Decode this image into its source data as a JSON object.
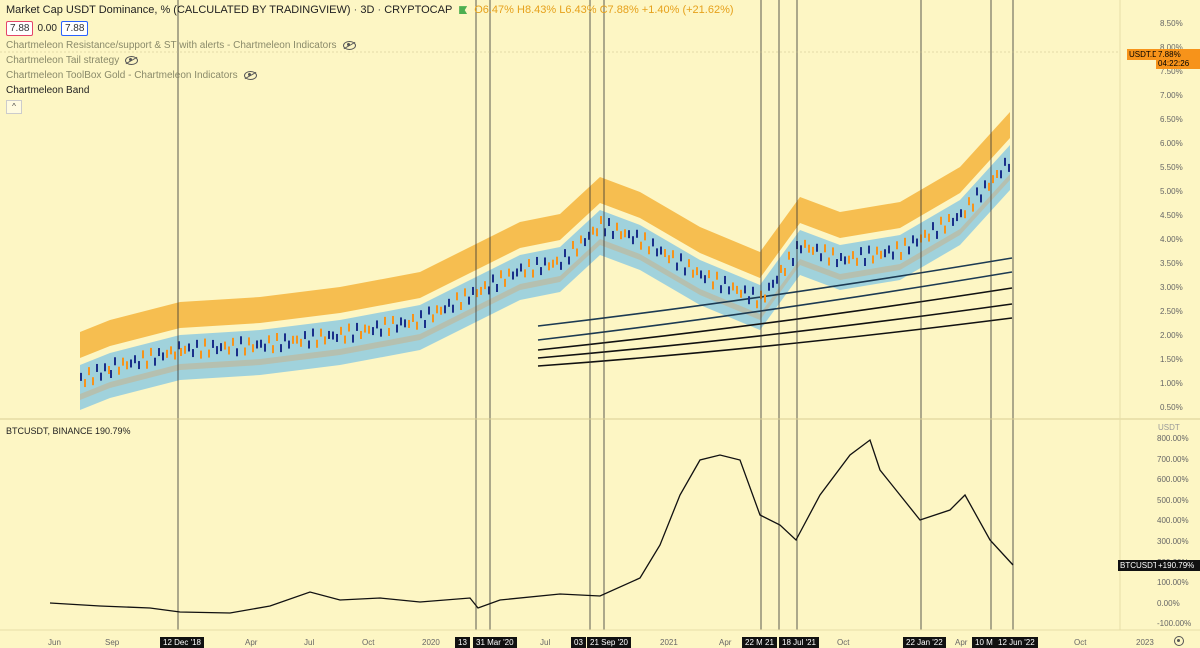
{
  "header": {
    "title": "Market Cap USDT Dominance, % (CALCULATED BY TRADINGVIEW)",
    "interval": "3D",
    "exchange": "CRYPTOCAP",
    "open": "O6.47%",
    "high": "H8.43%",
    "low": "L6.43%",
    "close": "C7.88%",
    "change": "+1.40% (+21.62%)",
    "price_box_1": "7.88",
    "price_box_mid": "0.00",
    "price_box_2": "7.88"
  },
  "indicators": [
    {
      "label": "Chartmeleon Resistance/support & ST with alerts - Chartmeleon Indicators"
    },
    {
      "label": "Chartmeleon Tail strategy"
    },
    {
      "label": "Chartmeleon ToolBox Gold - Chartmeleon Indicators"
    },
    {
      "label": "Chartmeleon Band"
    }
  ],
  "collapse_glyph": "^",
  "btc_legend": {
    "symbol": "BTCUSDT, BINANCE",
    "value": "190.79%"
  },
  "price_tags": {
    "usdt_symbol": "USDT.D",
    "usdt_value": "7.88%",
    "usdt_countdown": "04:22:26",
    "btc_symbol": "BTCUSDT",
    "btc_value": "+190.79%"
  },
  "upper_axis_labels": [
    "8.50%",
    "8.00%",
    "7.50%",
    "7.00%",
    "6.50%",
    "6.00%",
    "5.50%",
    "5.00%",
    "4.50%",
    "4.00%",
    "3.50%",
    "3.00%",
    "2.50%",
    "2.00%",
    "1.50%",
    "1.00%",
    "0.50%"
  ],
  "lower_axis_header": "USDT",
  "lower_axis_labels": [
    "800.00%",
    "700.00%",
    "600.00%",
    "500.00%",
    "400.00%",
    "300.00%",
    "200.00%",
    "100.00%",
    "0.00%",
    "-100.00%"
  ],
  "time_axis_labels": [
    "Jun",
    "Sep",
    "Apr",
    "Jul",
    "Oct",
    "2020",
    "Jul",
    "2021",
    "Apr",
    "Oct",
    "Apr",
    "Oct",
    "2023"
  ],
  "date_tags": [
    "12 Dec '18",
    "13",
    "31 Mar '20",
    "03",
    "21 Sep '20",
    "22 M",
    "21",
    "18 Jul '21",
    "22 Jan '22",
    "10 M",
    "12 Jun '22"
  ],
  "colors": {
    "background": "#fdf6c4",
    "upper_band": "#f5b43c",
    "middle_band": "#b8bda8",
    "lower_band": "#8fcbe0",
    "candle_up": "#f7931a",
    "candle_down": "#1a2f8a",
    "btc_line": "#111111"
  }
}
